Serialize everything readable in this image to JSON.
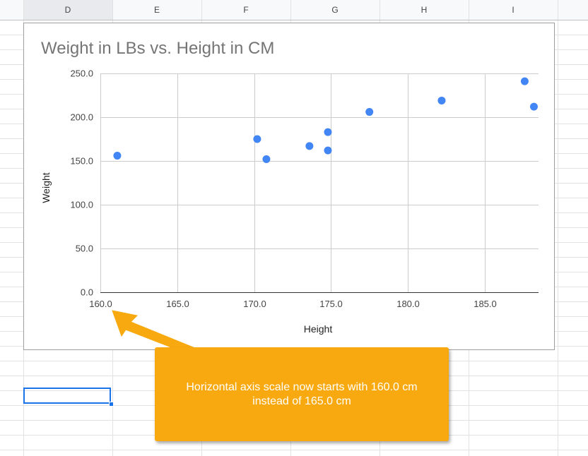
{
  "sheet": {
    "columns": [
      "D",
      "E",
      "F",
      "G",
      "H",
      "I"
    ],
    "selected_column": "D"
  },
  "chart_data": {
    "type": "scatter",
    "title": "Weight in LBs vs. Height in CM",
    "xlabel": "Height",
    "ylabel": "Weight",
    "xlim": [
      160,
      188.5
    ],
    "ylim": [
      0,
      250
    ],
    "x_ticks": [
      "160.0",
      "165.0",
      "170.0",
      "175.0",
      "180.0",
      "185.0"
    ],
    "y_ticks": [
      "0.0",
      "50.0",
      "100.0",
      "150.0",
      "200.0",
      "250.0"
    ],
    "grid": true,
    "legend": "none",
    "point_color": "#4285f4",
    "points": [
      {
        "x": 161.1,
        "y": 156
      },
      {
        "x": 170.2,
        "y": 175
      },
      {
        "x": 170.8,
        "y": 152
      },
      {
        "x": 173.6,
        "y": 167
      },
      {
        "x": 174.8,
        "y": 183
      },
      {
        "x": 174.8,
        "y": 162
      },
      {
        "x": 177.5,
        "y": 206
      },
      {
        "x": 182.2,
        "y": 219
      },
      {
        "x": 187.6,
        "y": 241
      },
      {
        "x": 188.2,
        "y": 212
      }
    ]
  },
  "callout": {
    "text": "Horizontal axis scale now starts with 160.0 cm instead of 165.0 cm",
    "color": "#f7a90f"
  }
}
